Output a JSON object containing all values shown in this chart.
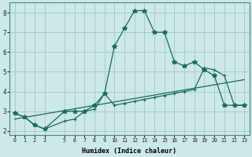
{
  "xlabel": "Humidex (Indice chaleur)",
  "bg_color": "#cce8e8",
  "grid_color": "#aacccc",
  "line_color": "#1a6b5a",
  "x_ticks": [
    0,
    1,
    2,
    3,
    5,
    6,
    7,
    8,
    9,
    10,
    11,
    12,
    13,
    14,
    15,
    16,
    17,
    18,
    19,
    20,
    21,
    22,
    23
  ],
  "ylim": [
    1.8,
    8.5
  ],
  "xlim": [
    -0.5,
    23.5
  ],
  "series": [
    {
      "x": [
        0,
        1,
        2,
        3,
        5,
        6,
        7,
        8,
        9,
        10,
        11,
        12,
        13,
        14,
        15,
        16,
        17,
        18,
        19,
        20,
        21,
        22,
        23
      ],
      "y": [
        2.9,
        2.7,
        2.3,
        2.1,
        2.5,
        2.6,
        3.0,
        3.1,
        3.9,
        3.3,
        3.4,
        3.5,
        3.6,
        3.7,
        3.8,
        3.9,
        4.0,
        4.1,
        5.2,
        5.1,
        4.8,
        3.3,
        3.3
      ],
      "marker": "+",
      "linestyle": "-",
      "lw": 0.9
    },
    {
      "x": [
        0,
        1,
        2,
        3,
        5,
        6,
        7,
        8,
        9,
        10,
        11,
        12,
        13,
        14,
        15,
        16,
        17,
        18,
        19,
        20,
        21,
        22,
        23
      ],
      "y": [
        2.9,
        2.7,
        2.3,
        2.1,
        3.0,
        3.0,
        3.0,
        3.3,
        3.9,
        6.3,
        7.2,
        8.1,
        8.1,
        7.0,
        7.0,
        5.5,
        5.3,
        5.5,
        5.1,
        4.8,
        3.3,
        3.3,
        3.3
      ],
      "marker": "*",
      "linestyle": "-",
      "lw": 0.9
    },
    {
      "x": [
        0,
        23
      ],
      "y": [
        2.6,
        4.6
      ],
      "marker": null,
      "linestyle": "-",
      "lw": 0.9
    }
  ]
}
